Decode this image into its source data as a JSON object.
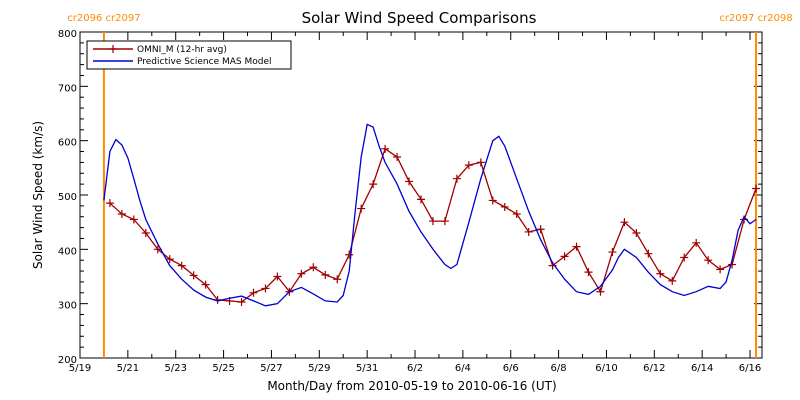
{
  "colors": {
    "omni": "#a00000",
    "model": "#0000d0",
    "cr_line": "#ff8c00",
    "axis": "#000000",
    "background": "#ffffff"
  },
  "chart_data": {
    "type": "line",
    "title": "Solar Wind Speed Comparisons",
    "xlabel": "Month/Day from 2010-05-19 to 2010-06-16 (UT)",
    "ylabel": "Solar Wind Speed (km/s)",
    "xlim": [
      "2010-05-19",
      "2010-06-16 12:00"
    ],
    "ylim": [
      200,
      800
    ],
    "y_ticks": [
      200,
      300,
      400,
      500,
      600,
      700,
      800
    ],
    "x_ticks": [
      {
        "date": "2010-05-19",
        "label": "5/19"
      },
      {
        "date": "2010-05-21",
        "label": "5/21"
      },
      {
        "date": "2010-05-23",
        "label": "5/23"
      },
      {
        "date": "2010-05-25",
        "label": "5/25"
      },
      {
        "date": "2010-05-27",
        "label": "5/27"
      },
      {
        "date": "2010-05-29",
        "label": "5/29"
      },
      {
        "date": "2010-05-31",
        "label": "5/31"
      },
      {
        "date": "2010-06-02",
        "label": "6/2"
      },
      {
        "date": "2010-06-04",
        "label": "6/4"
      },
      {
        "date": "2010-06-06",
        "label": "6/6"
      },
      {
        "date": "2010-06-08",
        "label": "6/8"
      },
      {
        "date": "2010-06-10",
        "label": "6/10"
      },
      {
        "date": "2010-06-12",
        "label": "6/12"
      },
      {
        "date": "2010-06-14",
        "label": "6/14"
      },
      {
        "date": "2010-06-16",
        "label": "6/16"
      }
    ],
    "carrington_markers": [
      {
        "date": "2010-05-20",
        "label": "cr2096 cr2097"
      },
      {
        "date": "2010-06-16 06:00",
        "label": "cr2097 cr2098"
      }
    ],
    "legend": {
      "placement": "top-left"
    },
    "series": [
      {
        "name": "OMNI_M (12-hr avg)",
        "color": "#a00000",
        "markers": "plus",
        "points": [
          [
            "2010-05-20 06:00",
            485
          ],
          [
            "2010-05-20 18:00",
            465
          ],
          [
            "2010-05-21 06:00",
            455
          ],
          [
            "2010-05-21 18:00",
            430
          ],
          [
            "2010-05-22 06:00",
            400
          ],
          [
            "2010-05-22 18:00",
            382
          ],
          [
            "2010-05-23 06:00",
            370
          ],
          [
            "2010-05-23 18:00",
            352
          ],
          [
            "2010-05-24 06:00",
            335
          ],
          [
            "2010-05-24 18:00",
            307
          ],
          [
            "2010-05-25 06:00",
            305
          ],
          [
            "2010-05-25 18:00",
            303
          ],
          [
            "2010-05-26 06:00",
            320
          ],
          [
            "2010-05-26 18:00",
            328
          ],
          [
            "2010-05-27 06:00",
            350
          ],
          [
            "2010-05-27 18:00",
            322
          ],
          [
            "2010-05-28 06:00",
            355
          ],
          [
            "2010-05-28 18:00",
            367
          ],
          [
            "2010-05-29 06:00",
            353
          ],
          [
            "2010-05-29 18:00",
            345
          ],
          [
            "2010-05-30 06:00",
            390
          ],
          [
            "2010-05-30 18:00",
            475
          ],
          [
            "2010-05-31 06:00",
            520
          ],
          [
            "2010-05-31 18:00",
            585
          ],
          [
            "2010-06-01 06:00",
            570
          ],
          [
            "2010-06-01 18:00",
            525
          ],
          [
            "2010-06-02 06:00",
            492
          ],
          [
            "2010-06-02 18:00",
            452
          ],
          [
            "2010-06-03 06:00",
            452
          ],
          [
            "2010-06-03 18:00",
            530
          ],
          [
            "2010-06-04 06:00",
            555
          ],
          [
            "2010-06-04 18:00",
            560
          ],
          [
            "2010-06-05 06:00",
            490
          ],
          [
            "2010-06-05 18:00",
            478
          ],
          [
            "2010-06-06 06:00",
            465
          ],
          [
            "2010-06-06 18:00",
            432
          ],
          [
            "2010-06-07 06:00",
            437
          ],
          [
            "2010-06-07 18:00",
            370
          ],
          [
            "2010-06-08 06:00",
            387
          ],
          [
            "2010-06-08 18:00",
            405
          ],
          [
            "2010-06-09 06:00",
            358
          ],
          [
            "2010-06-09 18:00",
            322
          ],
          [
            "2010-06-10 06:00",
            395
          ],
          [
            "2010-06-10 18:00",
            450
          ],
          [
            "2010-06-11 06:00",
            430
          ],
          [
            "2010-06-11 18:00",
            392
          ],
          [
            "2010-06-12 06:00",
            355
          ],
          [
            "2010-06-12 18:00",
            342
          ],
          [
            "2010-06-13 06:00",
            385
          ],
          [
            "2010-06-13 18:00",
            412
          ],
          [
            "2010-06-14 06:00",
            380
          ],
          [
            "2010-06-14 18:00",
            363
          ],
          [
            "2010-06-15 06:00",
            372
          ],
          [
            "2010-06-15 18:00",
            455
          ],
          [
            "2010-06-16 06:00",
            512
          ]
        ]
      },
      {
        "name": "Predictive Science MAS Model",
        "color": "#0000d0",
        "markers": "none",
        "points": [
          [
            "2010-05-20 00:00",
            490
          ],
          [
            "2010-05-20 06:00",
            580
          ],
          [
            "2010-05-20 12:00",
            602
          ],
          [
            "2010-05-20 18:00",
            592
          ],
          [
            "2010-05-21 00:00",
            568
          ],
          [
            "2010-05-21 06:00",
            530
          ],
          [
            "2010-05-21 12:00",
            490
          ],
          [
            "2010-05-21 18:00",
            455
          ],
          [
            "2010-05-22 06:00",
            410
          ],
          [
            "2010-05-22 18:00",
            370
          ],
          [
            "2010-05-23 06:00",
            345
          ],
          [
            "2010-05-23 18:00",
            325
          ],
          [
            "2010-05-24 06:00",
            312
          ],
          [
            "2010-05-24 18:00",
            305
          ],
          [
            "2010-05-25 06:00",
            310
          ],
          [
            "2010-05-25 18:00",
            314
          ],
          [
            "2010-05-26 06:00",
            305
          ],
          [
            "2010-05-26 18:00",
            296
          ],
          [
            "2010-05-27 06:00",
            300
          ],
          [
            "2010-05-27 18:00",
            322
          ],
          [
            "2010-05-28 06:00",
            330
          ],
          [
            "2010-05-28 18:00",
            318
          ],
          [
            "2010-05-29 06:00",
            305
          ],
          [
            "2010-05-29 18:00",
            303
          ],
          [
            "2010-05-30 00:00",
            315
          ],
          [
            "2010-05-30 06:00",
            360
          ],
          [
            "2010-05-30 12:00",
            470
          ],
          [
            "2010-05-30 18:00",
            570
          ],
          [
            "2010-05-31 00:00",
            630
          ],
          [
            "2010-05-31 06:00",
            625
          ],
          [
            "2010-05-31 12:00",
            590
          ],
          [
            "2010-05-31 18:00",
            560
          ],
          [
            "2010-06-01 06:00",
            520
          ],
          [
            "2010-06-01 18:00",
            470
          ],
          [
            "2010-06-02 06:00",
            432
          ],
          [
            "2010-06-02 18:00",
            400
          ],
          [
            "2010-06-03 06:00",
            372
          ],
          [
            "2010-06-03 12:00",
            365
          ],
          [
            "2010-06-03 18:00",
            372
          ],
          [
            "2010-06-04 06:00",
            450
          ],
          [
            "2010-06-04 18:00",
            530
          ],
          [
            "2010-06-05 06:00",
            600
          ],
          [
            "2010-06-05 12:00",
            608
          ],
          [
            "2010-06-05 18:00",
            590
          ],
          [
            "2010-06-06 06:00",
            530
          ],
          [
            "2010-06-06 18:00",
            470
          ],
          [
            "2010-06-07 06:00",
            418
          ],
          [
            "2010-06-07 18:00",
            375
          ],
          [
            "2010-06-08 06:00",
            345
          ],
          [
            "2010-06-08 18:00",
            322
          ],
          [
            "2010-06-09 06:00",
            317
          ],
          [
            "2010-06-09 18:00",
            332
          ],
          [
            "2010-06-10 06:00",
            362
          ],
          [
            "2010-06-10 12:00",
            385
          ],
          [
            "2010-06-10 18:00",
            400
          ],
          [
            "2010-06-11 06:00",
            385
          ],
          [
            "2010-06-11 18:00",
            358
          ],
          [
            "2010-06-12 06:00",
            335
          ],
          [
            "2010-06-12 18:00",
            322
          ],
          [
            "2010-06-13 06:00",
            315
          ],
          [
            "2010-06-13 18:00",
            322
          ],
          [
            "2010-06-14 06:00",
            332
          ],
          [
            "2010-06-14 18:00",
            328
          ],
          [
            "2010-06-15 00:00",
            340
          ],
          [
            "2010-06-15 06:00",
            380
          ],
          [
            "2010-06-15 12:00",
            435
          ],
          [
            "2010-06-15 18:00",
            460
          ],
          [
            "2010-06-16 00:00",
            447
          ],
          [
            "2010-06-16 06:00",
            455
          ]
        ]
      }
    ]
  }
}
